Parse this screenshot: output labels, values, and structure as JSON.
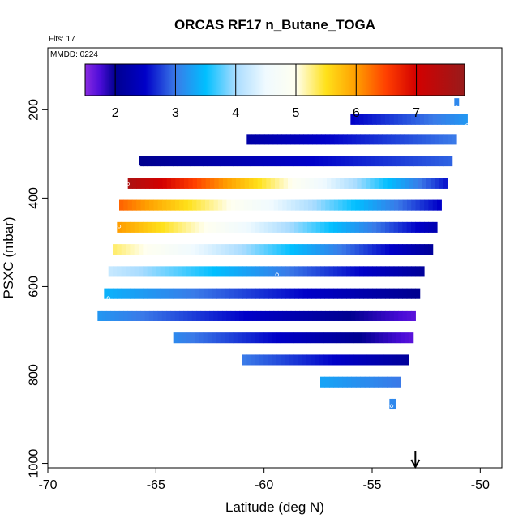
{
  "chart_data": {
    "type": "heatmap",
    "title": "ORCAS RF17 n_Butane_TOGA",
    "flights_label": "Flts: 17",
    "date_label": "MMDD: 0224",
    "xlabel": "Latitude (deg N)",
    "ylabel": "PSXC (mbar)",
    "xlim": [
      -70,
      -49
    ],
    "ylim": [
      1010,
      60
    ],
    "x_ticks": [
      -70,
      -65,
      -60,
      -55,
      -50
    ],
    "x_tick_labels": [
      "-70",
      "-65",
      "-60",
      "-55",
      "-50"
    ],
    "y_ticks": [
      200,
      400,
      600,
      800,
      1000
    ],
    "y_tick_labels": [
      "200",
      "400",
      "600",
      "800",
      "1000"
    ],
    "colorbar": {
      "min": 1.5,
      "max": 7.8,
      "ticks": [
        2,
        3,
        4,
        5,
        6,
        7
      ],
      "tick_labels": [
        "2",
        "3",
        "4",
        "5",
        "6",
        "7"
      ],
      "stops": [
        {
          "v": 1.5,
          "c": "#8a2be2"
        },
        {
          "v": 1.75,
          "c": "#4b0cd8"
        },
        {
          "v": 2.0,
          "c": "#000090"
        },
        {
          "v": 2.5,
          "c": "#0000c8"
        },
        {
          "v": 3.0,
          "c": "#3a7ae8"
        },
        {
          "v": 3.5,
          "c": "#00bfff"
        },
        {
          "v": 4.0,
          "c": "#a9dcff"
        },
        {
          "v": 4.5,
          "c": "#f0faff"
        },
        {
          "v": 5.0,
          "c": "#fffff0"
        },
        {
          "v": 5.5,
          "c": "#ffe11a"
        },
        {
          "v": 6.0,
          "c": "#ff9e00"
        },
        {
          "v": 6.5,
          "c": "#ff3f00"
        },
        {
          "v": 7.0,
          "c": "#d30000"
        },
        {
          "v": 7.8,
          "c": "#981b1b"
        }
      ]
    },
    "rows": [
      {
        "p": 183,
        "ph": 18,
        "x1": -51.2,
        "x2": -51.0,
        "v1": 3.1,
        "v2": 3.1
      },
      {
        "p": 222,
        "ph": 24,
        "x1": -56.0,
        "x2": -50.6,
        "v1": 2.5,
        "v2": 3.2
      },
      {
        "p": 267,
        "ph": 24,
        "x1": -60.8,
        "x2": -51.1,
        "v1": 2.2,
        "v2": 3.0
      },
      {
        "p": 316,
        "ph": 24,
        "x1": -65.8,
        "x2": -51.3,
        "v1": 2.0,
        "v2": 2.9
      },
      {
        "p": 367,
        "ph": 24,
        "x1": -66.3,
        "x2": -51.5,
        "v1": 7.5,
        "v2": 2.6
      },
      {
        "p": 416,
        "ph": 24,
        "x1": -66.7,
        "x2": -51.8,
        "v1": 6.3,
        "v2": 2.5
      },
      {
        "p": 466,
        "ph": 24,
        "x1": -66.8,
        "x2": -52.0,
        "v1": 6.0,
        "v2": 2.3
      },
      {
        "p": 516,
        "ph": 24,
        "x1": -67.0,
        "x2": -52.2,
        "v1": 5.3,
        "v2": 2.1
      },
      {
        "p": 566,
        "ph": 24,
        "x1": -67.2,
        "x2": -52.6,
        "v1": 4.2,
        "v2": 2.1
      },
      {
        "p": 616,
        "ph": 24,
        "x1": -67.4,
        "x2": -52.8,
        "v1": 3.4,
        "v2": 2.0
      },
      {
        "p": 666,
        "ph": 24,
        "x1": -67.7,
        "x2": -53.0,
        "v1": 3.2,
        "v2": 1.7
      },
      {
        "p": 716,
        "ph": 24,
        "x1": -64.2,
        "x2": -53.1,
        "v1": 3.1,
        "v2": 1.7
      },
      {
        "p": 766,
        "ph": 24,
        "x1": -61.0,
        "x2": -53.3,
        "v1": 3.0,
        "v2": 2.1
      },
      {
        "p": 816,
        "ph": 24,
        "x1": -57.4,
        "x2": -53.7,
        "v1": 3.3,
        "v2": 3.0
      },
      {
        "p": 866,
        "ph": 24,
        "x1": -54.2,
        "x2": -53.9,
        "v1": 3.1,
        "v2": 3.1
      }
    ],
    "markers": [
      {
        "lat": -51.1,
        "p": 195
      },
      {
        "lat": -50.6,
        "p": 235
      },
      {
        "lat": -65.8,
        "p": 328
      },
      {
        "lat": -66.3,
        "p": 368
      },
      {
        "lat": -56.0,
        "p": 390
      },
      {
        "lat": -66.7,
        "p": 464
      },
      {
        "lat": -61.4,
        "p": 532
      },
      {
        "lat": -59.4,
        "p": 573
      },
      {
        "lat": -67.2,
        "p": 626
      },
      {
        "lat": -67.6,
        "p": 708
      },
      {
        "lat": -53.3,
        "p": 749
      },
      {
        "lat": -54.1,
        "p": 870
      }
    ],
    "arrow_lat": -53.0
  }
}
